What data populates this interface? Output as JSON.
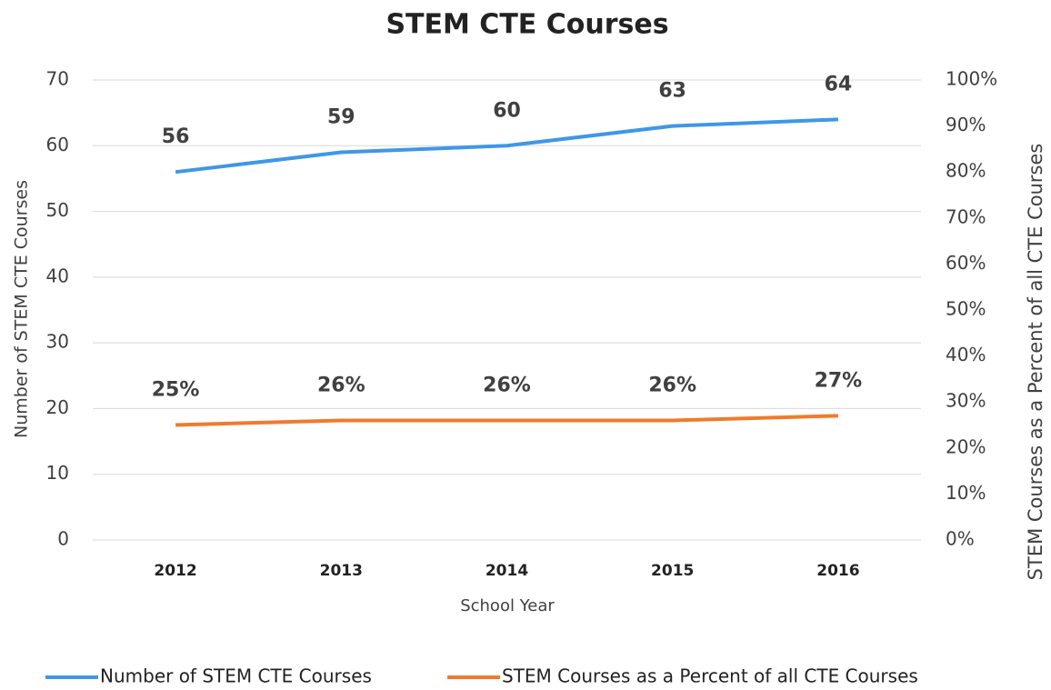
{
  "chart_data": {
    "type": "line",
    "title": "STEM CTE Courses",
    "x_label": "School Year",
    "y_label": "Number of STEM CTE Courses",
    "y2_label": "STEM Courses as a Percent of all CTE Courses",
    "categories": [
      "2012",
      "2013",
      "2014",
      "2015",
      "2016"
    ],
    "series": [
      {
        "name": "Number of STEM CTE Courses",
        "color": "#3f97e6",
        "values": [
          56,
          59,
          60,
          63,
          64
        ]
      },
      {
        "name": "STEM Courses as a Percent of all CTE Courses",
        "color": "#ef7b2c",
        "axis": "y2",
        "values": [
          25,
          26,
          26,
          26,
          27
        ],
        "value_labels": [
          "25%",
          "26%",
          "26%",
          "26%",
          "27%"
        ]
      }
    ],
    "ylim": [
      0,
      70
    ],
    "yticks": [
      0,
      10,
      20,
      30,
      40,
      50,
      60,
      70
    ],
    "y2lim": [
      0,
      100
    ],
    "y2ticks": [
      {
        "value": 0,
        "label": "0%"
      },
      {
        "value": 10,
        "label": "10%"
      },
      {
        "value": 20,
        "label": "20%"
      },
      {
        "value": 30,
        "label": "30%"
      },
      {
        "value": 40,
        "label": "40%"
      },
      {
        "value": 50,
        "label": "50%"
      },
      {
        "value": 60,
        "label": "60%"
      },
      {
        "value": 70,
        "label": "70%"
      },
      {
        "value": 80,
        "label": "80%"
      },
      {
        "value": 90,
        "label": "90%"
      },
      {
        "value": 100,
        "label": "100%"
      }
    ],
    "grid": true,
    "legend": "bottom"
  }
}
